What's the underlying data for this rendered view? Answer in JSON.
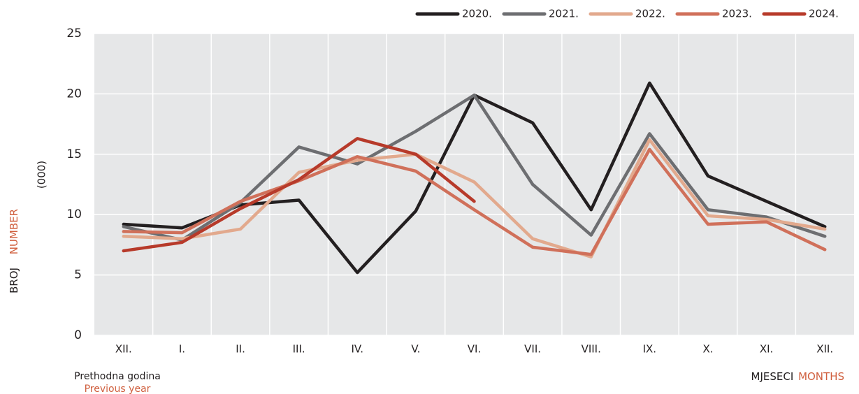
{
  "chart_data": {
    "type": "line",
    "unit": "(000)",
    "y_label_hr": "BROJ",
    "y_label_en": "NUMBER",
    "x_label_hr": "MJESECI",
    "x_label_en": "MONTHS",
    "note_hr": "Prethodna godina",
    "note_en": "Previous year",
    "categories": [
      "XII.",
      "I.",
      "II.",
      "III.",
      "IV.",
      "V.",
      "VI.",
      "VII.",
      "VIII.",
      "IX.",
      "X.",
      "XI.",
      "XII."
    ],
    "ylim": [
      0,
      25
    ],
    "yticks": [
      0,
      5,
      10,
      15,
      20,
      25
    ],
    "grid": true,
    "legend": "top-right",
    "series": [
      {
        "name": "2020.",
        "color": "#231f20",
        "values": [
          9.2,
          8.9,
          10.8,
          11.2,
          5.2,
          10.3,
          19.9,
          17.6,
          10.4,
          20.9,
          13.2,
          11.1,
          9.0
        ]
      },
      {
        "name": "2021.",
        "color": "#6d6e71",
        "values": [
          9.0,
          7.9,
          11.0,
          15.6,
          14.2,
          16.9,
          19.9,
          12.5,
          8.3,
          16.7,
          10.4,
          9.8,
          8.2
        ]
      },
      {
        "name": "2022.",
        "color": "#e2a98d",
        "values": [
          8.2,
          8.0,
          8.8,
          13.5,
          14.5,
          15.0,
          12.7,
          8.0,
          6.5,
          16.2,
          9.9,
          9.6,
          8.8
        ]
      },
      {
        "name": "2023.",
        "color": "#d0705a",
        "values": [
          8.6,
          8.5,
          11.1,
          12.8,
          14.8,
          13.6,
          10.4,
          7.3,
          6.7,
          15.4,
          9.2,
          9.4,
          7.1
        ]
      },
      {
        "name": "2024.",
        "color": "#b73a2a",
        "values": [
          7.0,
          7.7,
          10.5,
          12.9,
          16.3,
          15.0,
          11.1,
          null,
          null,
          null,
          null,
          null,
          null
        ]
      }
    ]
  }
}
